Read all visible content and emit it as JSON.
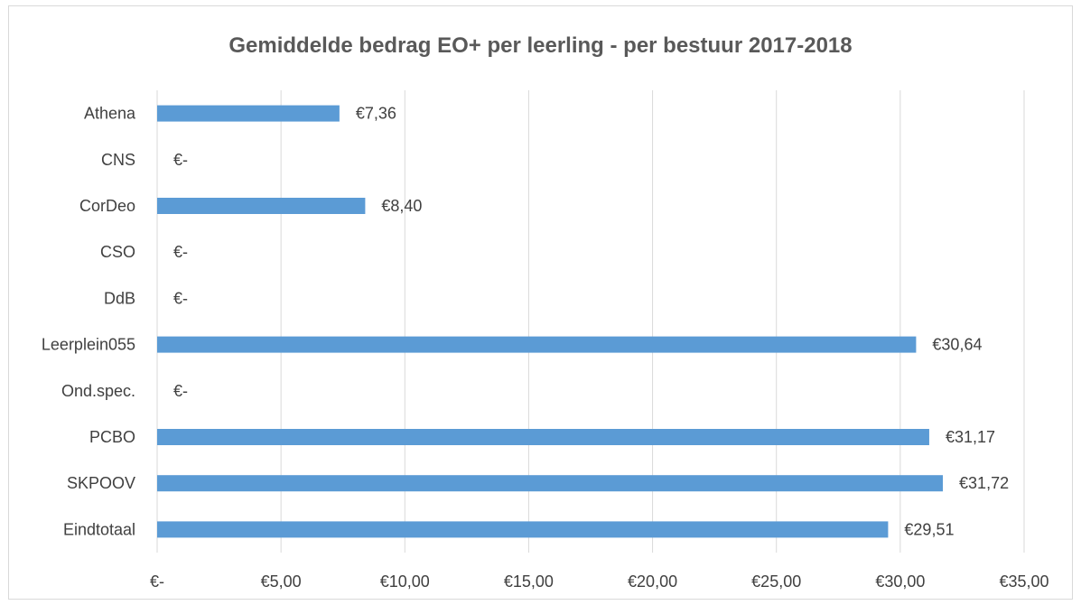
{
  "chart_data": {
    "type": "bar",
    "orientation": "horizontal",
    "title": "Gemiddelde bedrag EO+ per leerling - per bestuur 2017-2018",
    "categories": [
      "Athena",
      "CNS",
      "CorDeo",
      "CSO",
      "DdB",
      "Leerplein055",
      "Ond.spec.",
      "PCBO",
      "SKPOOV",
      "Eindtotaal"
    ],
    "values": [
      7.36,
      0,
      8.4,
      0,
      0,
      30.64,
      0,
      31.17,
      31.72,
      29.51
    ],
    "value_labels": [
      "€7,36",
      "€-",
      "€8,40",
      "€-",
      "€-",
      "€30,64",
      "€-",
      "€31,17",
      "€31,72",
      "€29,51"
    ],
    "xlim": [
      0,
      35
    ],
    "x_ticks": [
      0,
      5,
      10,
      15,
      20,
      25,
      30,
      35
    ],
    "x_tick_labels": [
      "€-",
      "€5,00",
      "€10,00",
      "€15,00",
      "€20,00",
      "€25,00",
      "€30,00",
      "€35,00"
    ],
    "bar_color": "#5b9bd5",
    "gridlines": true,
    "legend": false
  }
}
